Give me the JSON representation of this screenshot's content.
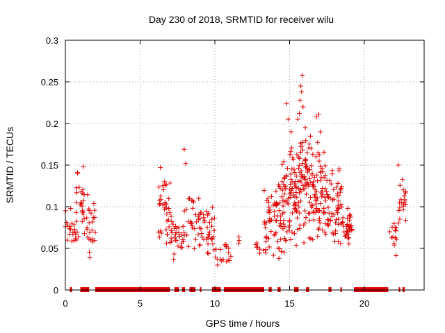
{
  "chart_data": {
    "type": "scatter",
    "title": "Day 230 of 2018, SRMTID for receiver wilu",
    "xlabel": "GPS time / hours",
    "ylabel": "SRMTID / TECUs",
    "xlim": [
      0,
      24
    ],
    "ylim": [
      0,
      0.3
    ],
    "xticks": [
      0,
      5,
      10,
      15,
      20
    ],
    "xtick_labels": [
      "0",
      "5",
      "10",
      "15",
      "20"
    ],
    "yticks": [
      0,
      0.05,
      0.1,
      0.15,
      0.2,
      0.25,
      0.3
    ],
    "ytick_labels": [
      "0",
      "0.05",
      "0.1",
      "0.15",
      "0.2",
      "0.25",
      "0.3"
    ],
    "grid": true,
    "marker": "plus",
    "series_color": "#e00000",
    "clusters": [
      {
        "x": [
          0.0,
          0.7
        ],
        "ymin": 0.05,
        "ymax": 0.1,
        "n": 20
      },
      {
        "x": [
          0.7,
          1.3
        ],
        "ymin": 0.04,
        "ymax": 0.148,
        "n": 28
      },
      {
        "x": [
          1.4,
          2.0
        ],
        "ymin": 0.035,
        "ymax": 0.125,
        "n": 24
      },
      {
        "x": [
          6.2,
          7.0
        ],
        "ymin": 0.05,
        "ymax": 0.148,
        "n": 34
      },
      {
        "x": [
          7.0,
          8.0
        ],
        "ymin": 0.035,
        "ymax": 0.1,
        "n": 34
      },
      {
        "x": [
          8.0,
          9.2
        ],
        "ymin": 0.04,
        "ymax": 0.12,
        "n": 34
      },
      {
        "x": [
          9.2,
          10.0
        ],
        "ymin": 0.025,
        "ymax": 0.12,
        "n": 30
      },
      {
        "x": [
          10.0,
          11.2
        ],
        "ymin": 0.025,
        "ymax": 0.07,
        "n": 18
      },
      {
        "x": [
          11.5,
          11.8
        ],
        "ymin": 0.05,
        "ymax": 0.065,
        "n": 3
      },
      {
        "x": [
          12.7,
          13.5
        ],
        "ymin": 0.035,
        "ymax": 0.065,
        "n": 10
      },
      {
        "x": [
          13.3,
          14.5
        ],
        "ymin": 0.03,
        "ymax": 0.14,
        "n": 60
      },
      {
        "x": [
          14.5,
          15.5
        ],
        "ymin": 0.04,
        "ymax": 0.18,
        "n": 80
      },
      {
        "x": [
          15.5,
          16.5
        ],
        "ymin": 0.05,
        "ymax": 0.2,
        "n": 80
      },
      {
        "x": [
          16.5,
          17.5
        ],
        "ymin": 0.05,
        "ymax": 0.18,
        "n": 70
      },
      {
        "x": [
          17.5,
          18.5
        ],
        "ymin": 0.045,
        "ymax": 0.15,
        "n": 55
      },
      {
        "x": [
          18.5,
          19.2
        ],
        "ymin": 0.055,
        "ymax": 0.1,
        "n": 35
      },
      {
        "x": [
          21.7,
          22.2
        ],
        "ymin": 0.03,
        "ymax": 0.1,
        "n": 14
      },
      {
        "x": [
          22.2,
          22.8
        ],
        "ymin": 0.055,
        "ymax": 0.152,
        "n": 22
      }
    ],
    "highlights": [
      {
        "x": 14.8,
        "y": 0.224
      },
      {
        "x": 14.9,
        "y": 0.205
      },
      {
        "x": 15.1,
        "y": 0.19
      },
      {
        "x": 15.55,
        "y": 0.205
      },
      {
        "x": 15.7,
        "y": 0.228
      },
      {
        "x": 15.75,
        "y": 0.245
      },
      {
        "x": 15.85,
        "y": 0.258
      },
      {
        "x": 15.8,
        "y": 0.238
      },
      {
        "x": 15.9,
        "y": 0.22
      },
      {
        "x": 15.65,
        "y": 0.212
      },
      {
        "x": 16.05,
        "y": 0.195
      },
      {
        "x": 16.8,
        "y": 0.208
      },
      {
        "x": 16.95,
        "y": 0.211
      },
      {
        "x": 17.05,
        "y": 0.19
      },
      {
        "x": 16.9,
        "y": 0.165
      },
      {
        "x": 7.95,
        "y": 0.169
      },
      {
        "x": 8.05,
        "y": 0.152
      },
      {
        "x": 1.2,
        "y": 0.148
      },
      {
        "x": 6.35,
        "y": 0.147
      }
    ],
    "zero_segments": [
      [
        0.3,
        0.45
      ],
      [
        1.0,
        1.6
      ],
      [
        2.0,
        7.0
      ],
      [
        7.3,
        7.6
      ],
      [
        7.8,
        8.0
      ],
      [
        8.3,
        8.7
      ],
      [
        9.0,
        9.1
      ],
      [
        9.8,
        10.4
      ],
      [
        10.6,
        13.3
      ],
      [
        13.6,
        13.8
      ],
      [
        14.2,
        14.4
      ],
      [
        15.3,
        15.6
      ],
      [
        16.1,
        16.3
      ],
      [
        17.6,
        17.8
      ],
      [
        18.4,
        18.5
      ],
      [
        19.3,
        21.6
      ],
      [
        22.3,
        22.4
      ],
      [
        22.55,
        22.7
      ]
    ]
  }
}
